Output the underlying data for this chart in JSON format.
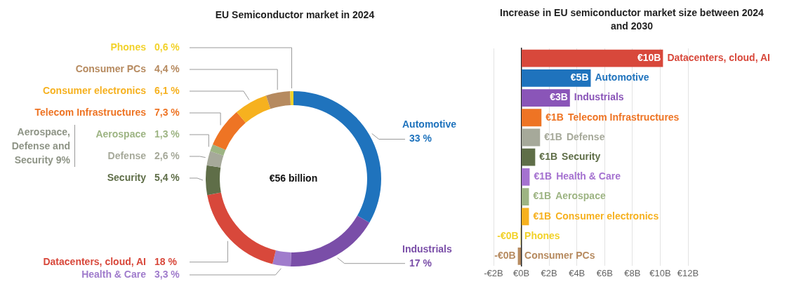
{
  "chart_data": [
    {
      "type": "donut",
      "title": "EU Semiconductor market in 2024",
      "categories": [
        "Automotive",
        "Industrials",
        "Health & Care",
        "Datacenters, cloud, AI",
        "Security",
        "Defense",
        "Aerospace",
        "Telecom Infrastructures",
        "Consumer electronics",
        "Consumer PCs",
        "Phones"
      ],
      "values": [
        33,
        17,
        3.3,
        18,
        5.4,
        2.6,
        1.3,
        7.3,
        6.1,
        4.4,
        0.6
      ],
      "value_labels": [
        "33 %",
        "17 %",
        "3,3 %",
        "18 %",
        "5,4 %",
        "2,6 %",
        "1,3 %",
        "7,3 %",
        "6,1 %",
        "4,4 %",
        "0,6 %"
      ],
      "colors": [
        "#1f73bd",
        "#7a4ea8",
        "#a07ccc",
        "#d8483b",
        "#5f6e48",
        "#a6a99a",
        "#9db483",
        "#ee7424",
        "#f6b11f",
        "#b68a5f",
        "#f2d22a"
      ],
      "annotations": [
        "Aerospace, Defense and Security 9%",
        "€56 billion"
      ]
    },
    {
      "type": "bar",
      "orientation": "horizontal",
      "title": "Increase in EU semiconductor market size between 2024 and 2030",
      "categories": [
        "Datacenters, cloud, AI",
        "Automotive",
        "Industrials",
        "Telecom Infrastructures",
        "Defense",
        "Security",
        "Health & Care",
        "Aerospace",
        "Consumer electronics",
        "Phones",
        "Consumer PCs"
      ],
      "values": [
        10.2,
        5.0,
        3.5,
        1.45,
        1.35,
        1.0,
        0.6,
        0.55,
        0.55,
        -0.05,
        -0.25
      ],
      "value_labels": [
        "€10B",
        "€5B",
        "€3B",
        "€1B",
        "€1B",
        "€1B",
        "€1B",
        "€1B",
        "€1B",
        "-€0B",
        "-€0B"
      ],
      "colors": [
        "#d8483b",
        "#1f73bd",
        "#8a55b8",
        "#ee7424",
        "#a6a99a",
        "#5f6e48",
        "#a572d0",
        "#9db483",
        "#f6b11f",
        "#f2d22a",
        "#b68a5f"
      ],
      "xlim": [
        -2,
        12
      ],
      "xticks": [
        {
          "value": -2,
          "label": "-€2B"
        },
        {
          "value": 0,
          "label": "€0B"
        },
        {
          "value": 2,
          "label": "€2B"
        },
        {
          "value": 4,
          "label": "€4B"
        },
        {
          "value": 6,
          "label": "€6B"
        },
        {
          "value": 8,
          "label": "€8B"
        },
        {
          "value": 10,
          "label": "€10B"
        },
        {
          "value": 12,
          "label": "€12B"
        }
      ],
      "grid": "x",
      "tick_labels": "x"
    }
  ]
}
